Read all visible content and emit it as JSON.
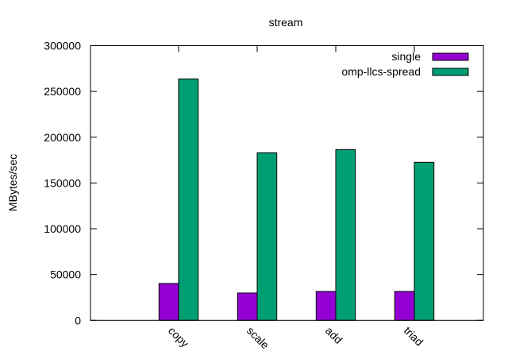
{
  "chart_data": {
    "type": "bar",
    "title": "stream",
    "xlabel": "",
    "ylabel": "MBytes/sec",
    "categories": [
      "copy",
      "scale",
      "add",
      "triad"
    ],
    "series": [
      {
        "name": "single",
        "color": "#9400d3",
        "values": [
          40200,
          29800,
          31500,
          31500
        ]
      },
      {
        "name": "omp-llcs-spread",
        "color": "#009e73",
        "values": [
          263700,
          183000,
          186500,
          172600
        ]
      }
    ],
    "ylim": [
      0,
      300000
    ],
    "yticks": [
      "0",
      "50000",
      "100000",
      "150000",
      "200000",
      "250000",
      "300000"
    ],
    "grid": false,
    "legend": "top-right"
  }
}
